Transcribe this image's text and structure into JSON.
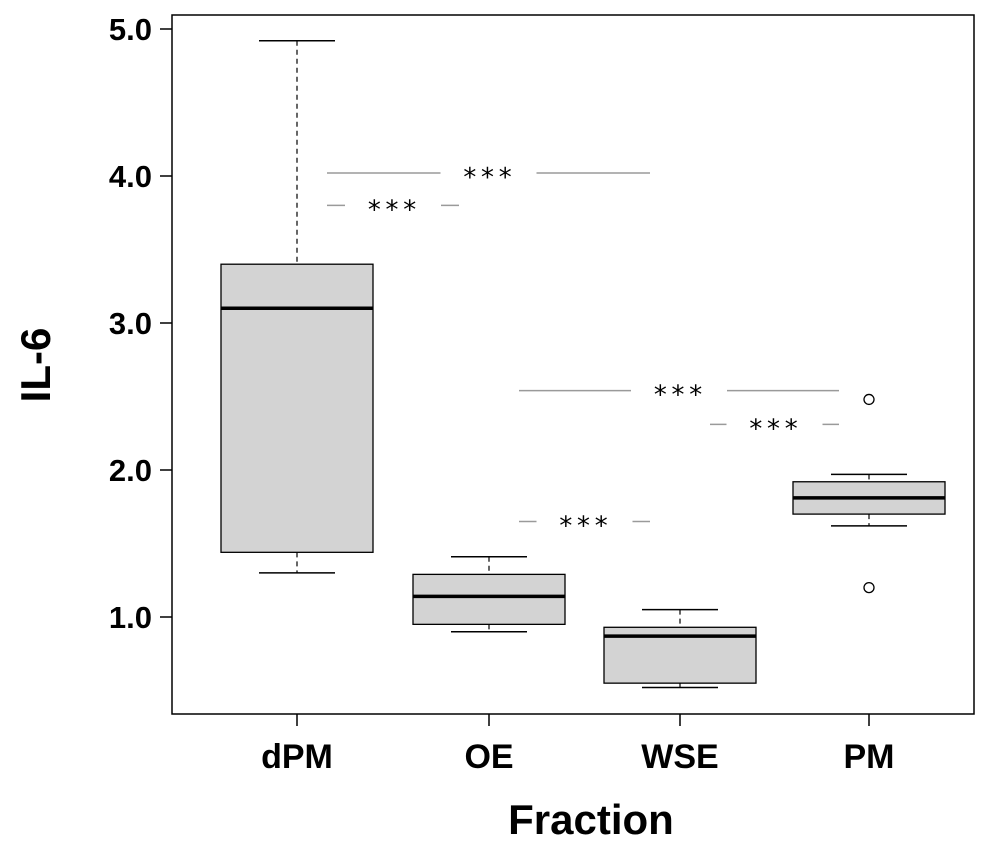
{
  "chart_data": {
    "type": "box",
    "xlabel": "Fraction",
    "ylabel": "IL-6",
    "ylim": [
      0.3,
      5.1
    ],
    "yticks": [
      1.0,
      2.0,
      3.0,
      4.0,
      5.0
    ],
    "ytick_labels": [
      "1.0",
      "2.0",
      "3.0",
      "4.0",
      "5.0"
    ],
    "categories": [
      "dPM",
      "OE",
      "WSE",
      "PM"
    ],
    "box_color": "#d3d3d3",
    "boxes": [
      {
        "category": "dPM",
        "whisker_low": 1.3,
        "q1": 1.44,
        "median": 3.1,
        "q3": 3.4,
        "whisker_high": 4.92,
        "outliers": []
      },
      {
        "category": "OE",
        "whisker_low": 0.9,
        "q1": 0.95,
        "median": 1.14,
        "q3": 1.29,
        "whisker_high": 1.41,
        "outliers": []
      },
      {
        "category": "WSE",
        "whisker_low": 0.52,
        "q1": 0.55,
        "median": 0.87,
        "q3": 0.93,
        "whisker_high": 1.05,
        "outliers": []
      },
      {
        "category": "PM",
        "whisker_low": 1.62,
        "q1": 1.7,
        "median": 1.81,
        "q3": 1.92,
        "whisker_high": 1.97,
        "outliers": [
          2.48,
          1.2
        ]
      }
    ],
    "significance": [
      {
        "label": "***",
        "from": "dPM",
        "to": "WSE",
        "y": 4.02
      },
      {
        "label": "***",
        "from": "dPM",
        "to": "OE",
        "y": 3.8
      },
      {
        "label": "***",
        "from": "OE",
        "to": "PM",
        "y": 2.54
      },
      {
        "label": "***",
        "from": "WSE",
        "to": "PM",
        "y": 2.31
      },
      {
        "label": "***",
        "from": "OE",
        "to": "WSE",
        "y": 1.65
      }
    ]
  }
}
